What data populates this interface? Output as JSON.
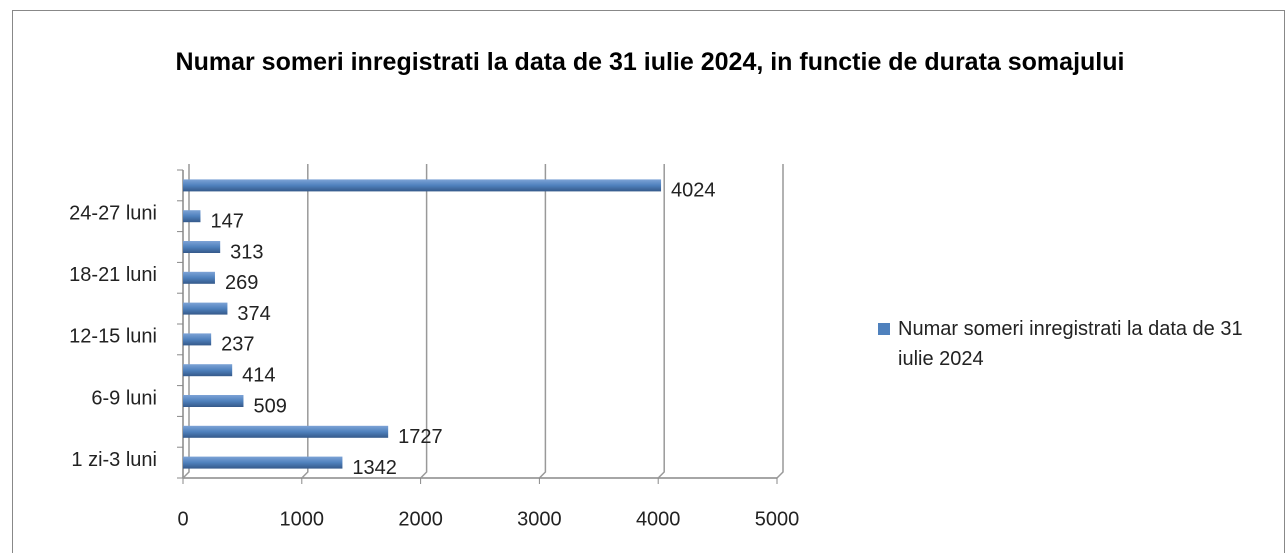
{
  "chart_data": {
    "type": "bar",
    "orientation": "horizontal",
    "title": "Numar someri inregistrati la data de 31 iulie 2024, in  functie de durata somajului",
    "categories": [
      "1 zi-3 luni",
      null,
      "6-9 luni",
      null,
      "12-15 luni",
      null,
      "18-21 luni",
      null,
      "24-27 luni",
      null
    ],
    "series": [
      {
        "name": "Numar someri inregistrati la data de 31 iulie 2024",
        "color": "#4f81bd",
        "values": [
          1342,
          1727,
          509,
          414,
          237,
          374,
          269,
          313,
          147,
          4024
        ]
      }
    ],
    "xlim": [
      0,
      5000
    ],
    "xticks": [
      0,
      1000,
      2000,
      3000,
      4000,
      5000
    ],
    "grid": true,
    "legend": "right"
  }
}
